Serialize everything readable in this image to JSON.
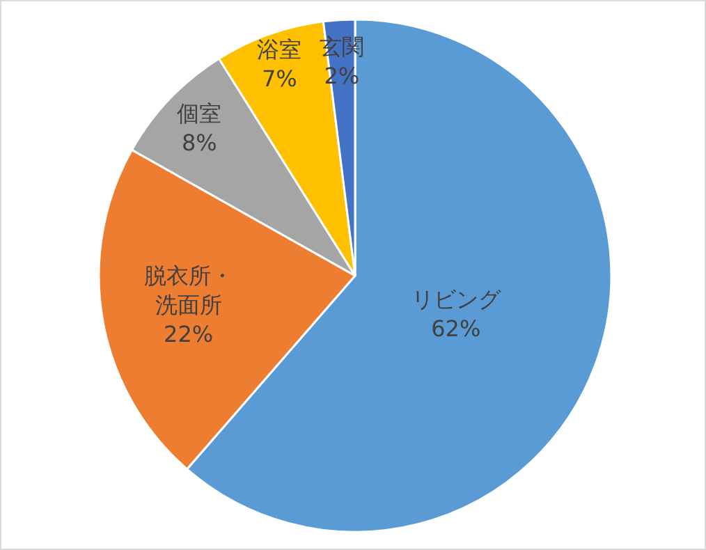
{
  "chart_data": {
    "type": "pie",
    "categories": [
      "リビング",
      "脱衣所・洗面所",
      "個室",
      "浴室",
      "玄関"
    ],
    "values": [
      62,
      22,
      8,
      7,
      2
    ],
    "colors": [
      "#5b9bd5",
      "#ed7d31",
      "#a5a5a5",
      "#ffc000",
      "#4472c4"
    ],
    "value_labels": [
      "62%",
      "22%",
      "8%",
      "7%",
      "2%"
    ]
  }
}
